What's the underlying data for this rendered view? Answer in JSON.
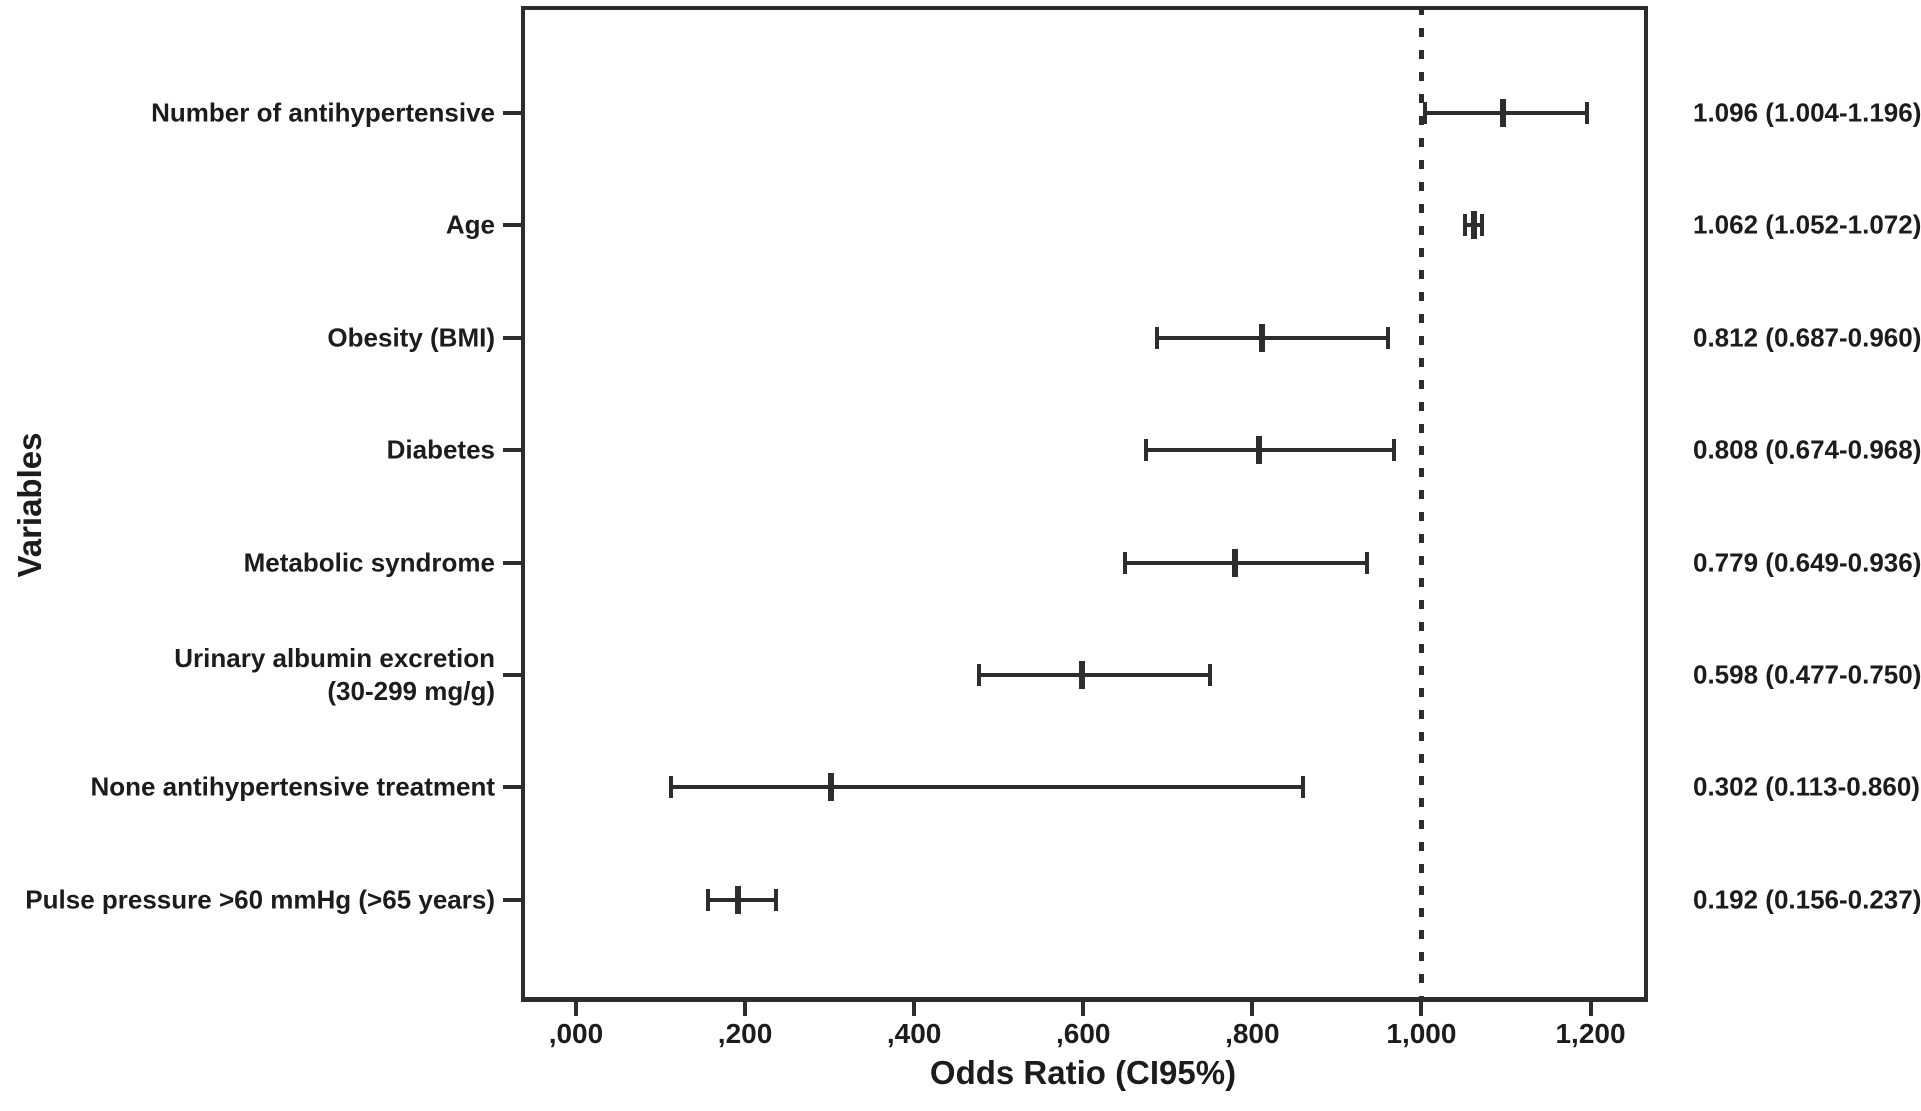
{
  "chart_data": {
    "type": "scatter",
    "subtype": "forest-plot",
    "title": "",
    "xlabel": "Odds Ratio (CI95%)",
    "ylabel": "Variables",
    "xlim": [
      -0.065,
      1.268
    ],
    "grid": false,
    "legend": "none",
    "reference_line": {
      "value": 1.0,
      "style": "dotted"
    },
    "x_ticks": [
      {
        "value": 0.0,
        "label": ",000"
      },
      {
        "value": 0.2,
        "label": ",200"
      },
      {
        "value": 0.4,
        "label": ",400"
      },
      {
        "value": 0.6,
        "label": ",600"
      },
      {
        "value": 0.8,
        "label": ",800"
      },
      {
        "value": 1.0,
        "label": "1,000"
      },
      {
        "value": 1.2,
        "label": "1,200"
      }
    ],
    "rows": [
      {
        "label_lines": [
          "Number of antihypertensive"
        ],
        "or": 1.096,
        "ci_low": 1.004,
        "ci_high": 1.196,
        "annotation": "1.096 (1.004-1.196)"
      },
      {
        "label_lines": [
          "Age"
        ],
        "or": 1.062,
        "ci_low": 1.052,
        "ci_high": 1.072,
        "annotation": "1.062 (1.052-1.072)"
      },
      {
        "label_lines": [
          "Obesity (BMI)"
        ],
        "or": 0.812,
        "ci_low": 0.687,
        "ci_high": 0.96,
        "annotation": "0.812 (0.687-0.960)"
      },
      {
        "label_lines": [
          "Diabetes"
        ],
        "or": 0.808,
        "ci_low": 0.674,
        "ci_high": 0.968,
        "annotation": "0.808 (0.674-0.968)"
      },
      {
        "label_lines": [
          "Metabolic syndrome"
        ],
        "or": 0.779,
        "ci_low": 0.649,
        "ci_high": 0.936,
        "annotation": "0.779 (0.649-0.936)"
      },
      {
        "label_lines": [
          "Urinary albumin excretion",
          "(30-299 mg/g)"
        ],
        "or": 0.598,
        "ci_low": 0.477,
        "ci_high": 0.75,
        "annotation": "0.598 (0.477-0.750)"
      },
      {
        "label_lines": [
          "None antihypertensive treatment"
        ],
        "or": 0.302,
        "ci_low": 0.113,
        "ci_high": 0.86,
        "annotation": "0.302 (0.113-0.860)"
      },
      {
        "label_lines": [
          "Pulse pressure >60 mmHg (>65 years)"
        ],
        "or": 0.192,
        "ci_low": 0.156,
        "ci_high": 0.237,
        "annotation": "0.192 (0.156-0.237)"
      }
    ],
    "colors": {
      "line": "#2d2d2d",
      "text": "#1c1c1c",
      "background": "#ffffff"
    }
  }
}
